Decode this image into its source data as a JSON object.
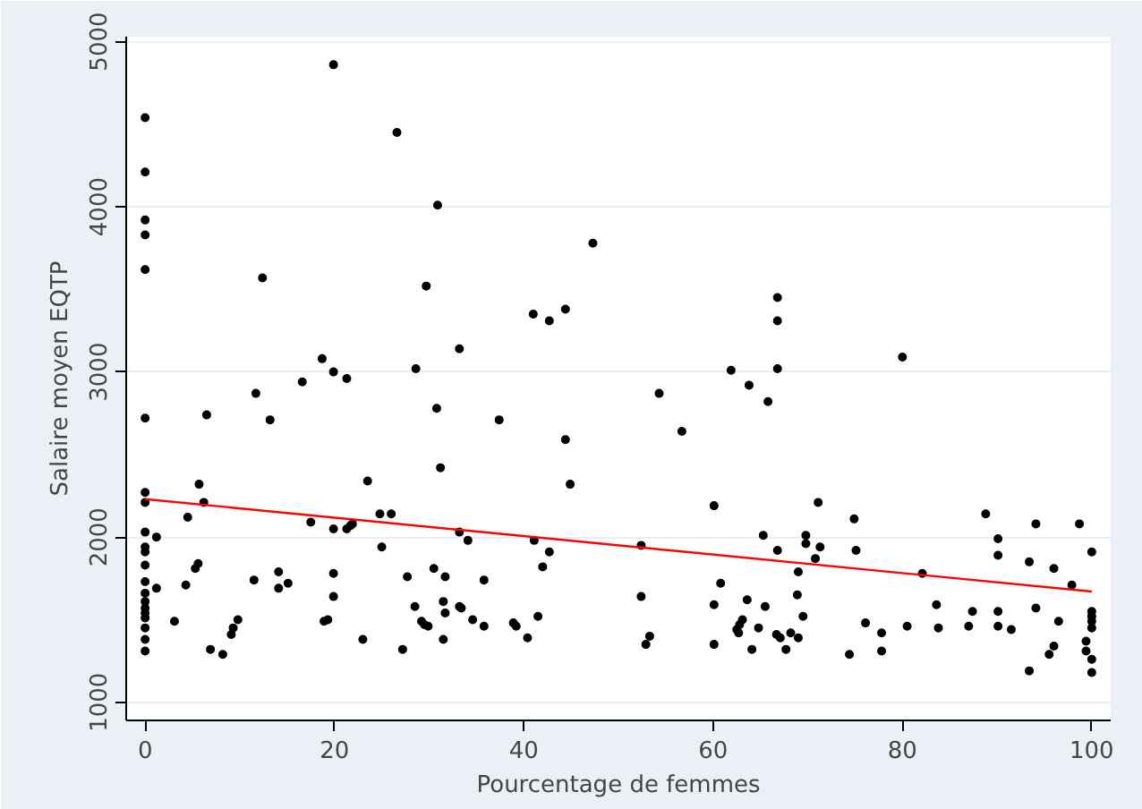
{
  "chart_data": {
    "type": "scatter",
    "xlabel": "Pourcentage de femmes",
    "ylabel": "Salaire moyen EQTP",
    "xlim": [
      -2,
      102
    ],
    "ylim": [
      890,
      5030
    ],
    "xticks": [
      0,
      20,
      40,
      60,
      80,
      100
    ],
    "yticks": [
      1000,
      2000,
      3000,
      4000,
      5000
    ],
    "grid": "y",
    "marker": "circle",
    "series": [
      {
        "color": "#000000",
        "x": [
          0,
          0,
          0,
          0,
          0,
          12.4,
          19.9,
          26.6,
          30.9,
          29.7,
          33.2,
          18.7,
          19.9,
          21.3,
          16.6,
          28.6,
          11.7,
          0,
          6.5,
          13.2,
          30.8,
          31.2,
          23.5,
          0,
          0,
          5.7,
          6.2,
          4.5,
          1.2,
          0,
          0,
          0,
          0,
          0,
          0,
          0,
          0,
          0,
          0,
          0,
          0,
          0,
          1.2,
          3.1,
          4.3,
          5.3,
          5.6,
          6.9,
          8.2,
          9.1,
          9.3,
          9.8,
          11.5,
          14.1,
          14.1,
          15.1,
          17.5,
          19.9,
          21.3,
          21.7,
          21.9,
          19.9,
          19.9,
          18.9,
          19.3,
          23.0,
          25.0,
          24.8,
          26.0,
          27.7,
          27.2,
          28.5,
          29.2,
          29.5,
          29.9,
          30.5,
          31.7,
          31.5,
          31.7,
          31.5,
          33.2,
          33.2,
          37.4,
          44.4,
          44.9,
          54.3,
          56.7,
          60.1,
          65.8,
          65.3,
          66.8,
          34.1,
          33.4,
          34.6,
          35.8,
          35.8,
          38.9,
          39.2,
          40.4,
          41.1,
          41.5,
          42.0,
          42.7,
          52.4,
          52.4,
          52.9,
          53.3,
          60.1,
          60.1,
          60.8,
          63.6,
          65.5,
          62.5,
          62.8,
          63.1,
          62.7,
          64.1,
          64.8,
          66.7,
          67.1,
          67.7,
          68.2,
          69.0,
          68.9,
          69.0,
          47.3,
          41.0,
          42.7,
          44.4,
          61.9,
          63.8,
          66.8,
          66.8,
          66.8,
          80.0,
          71.1,
          69.8,
          69.8,
          71.3,
          70.8,
          69.5,
          74.9,
          75.1,
          76.1,
          74.4,
          77.8,
          77.8,
          80.5,
          82.1,
          83.6,
          83.8,
          87.0,
          87.4,
          88.8,
          90.1,
          90.1,
          90.1,
          90.1,
          91.5,
          93.4,
          93.4,
          94.1,
          94.1,
          96.0,
          96.5,
          95.5,
          96.0,
          97.9,
          98.7,
          100,
          100,
          100,
          100,
          100,
          99.4,
          99.4,
          100,
          100
        ],
        "values": [
          4540,
          4210,
          3920,
          3830,
          3620,
          3570,
          4860,
          4450,
          4010,
          3520,
          3140,
          3080,
          3000,
          2960,
          2940,
          3020,
          2870,
          2720,
          2740,
          2710,
          2780,
          2420,
          2340,
          2270,
          2210,
          2320,
          2210,
          2120,
          2000,
          2030,
          1940,
          1910,
          1830,
          1730,
          1660,
          1610,
          1570,
          1540,
          1510,
          1450,
          1380,
          1310,
          1690,
          1490,
          1710,
          1810,
          1840,
          1320,
          1290,
          1410,
          1450,
          1500,
          1740,
          1790,
          1690,
          1720,
          2090,
          2050,
          2050,
          2070,
          2080,
          1780,
          1640,
          1490,
          1500,
          1380,
          1940,
          2140,
          2140,
          1760,
          1320,
          1580,
          1490,
          1470,
          1460,
          1810,
          1760,
          1610,
          1540,
          1380,
          1580,
          2030,
          2710,
          2590,
          2320,
          2870,
          2640,
          2190,
          2820,
          2010,
          1920,
          1980,
          1570,
          1500,
          1740,
          1460,
          1480,
          1460,
          1390,
          1980,
          1520,
          1820,
          1910,
          1950,
          1640,
          1350,
          1400,
          1590,
          1350,
          1720,
          1620,
          1580,
          1440,
          1470,
          1500,
          1420,
          1320,
          1450,
          1410,
          1390,
          1320,
          1420,
          1790,
          1650,
          1390,
          3780,
          3350,
          3310,
          3380,
          3010,
          2920,
          3450,
          3310,
          3020,
          3090,
          2210,
          2010,
          1960,
          1940,
          1870,
          1520,
          2110,
          1920,
          1480,
          1290,
          1420,
          1310,
          1460,
          1780,
          1590,
          1450,
          1460,
          1550,
          2140,
          1990,
          1890,
          1550,
          1460,
          1440,
          1850,
          1190,
          2080,
          1570,
          1810,
          1490,
          1290,
          1340,
          1710,
          2080,
          1910,
          1550,
          1490,
          1450,
          1520,
          1370,
          1310,
          1260,
          1180
        ]
      },
      {
        "type": "line",
        "marker": "none",
        "color": "#ff0000",
        "x": [
          0,
          100
        ],
        "values": [
          2230,
          1670
        ]
      }
    ]
  }
}
